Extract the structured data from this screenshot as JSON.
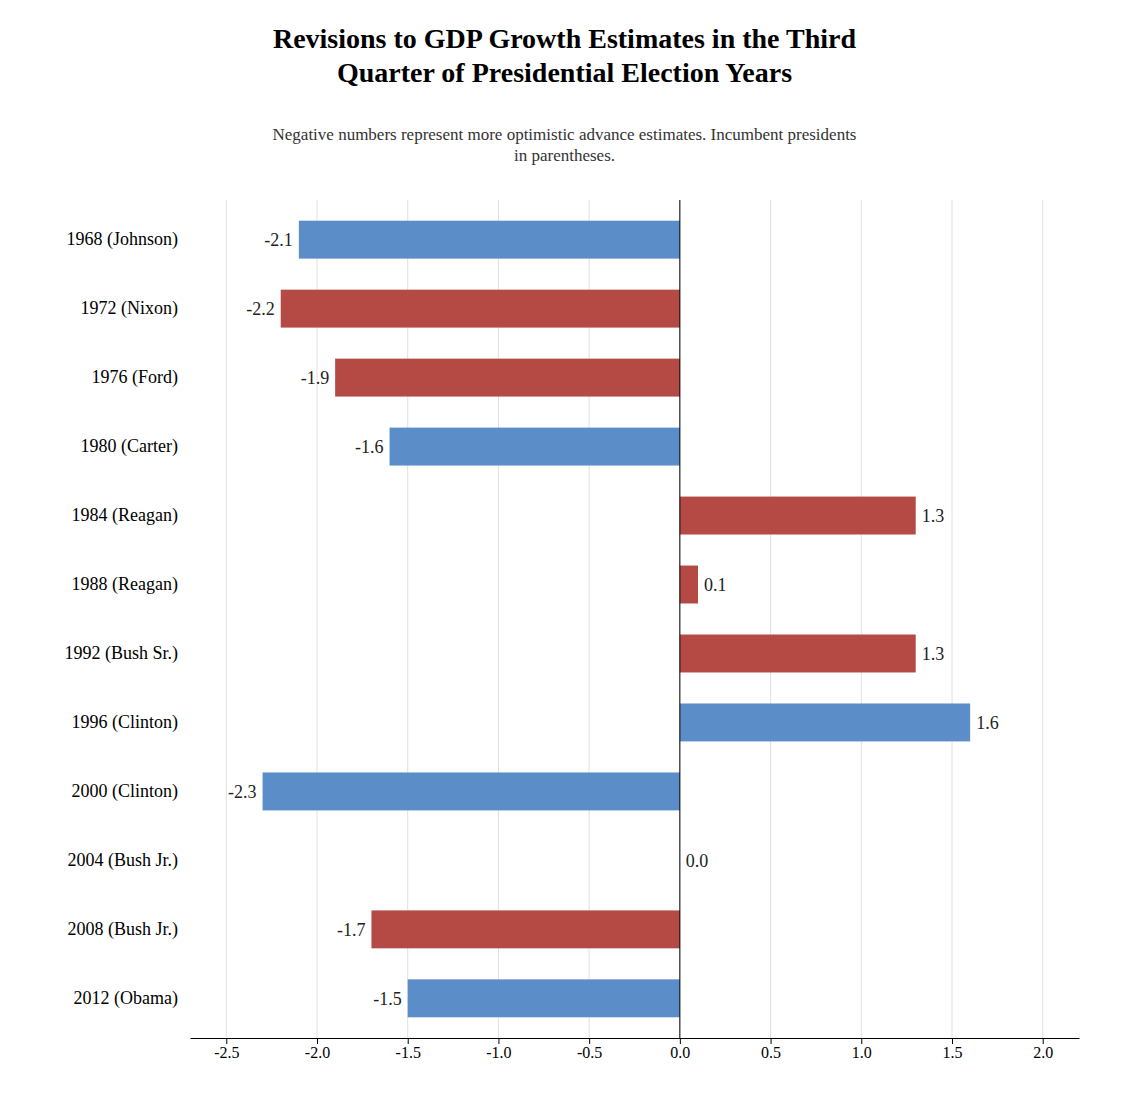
{
  "chart_data": {
    "type": "bar",
    "orientation": "horizontal",
    "title": "Revisions to GDP Growth Estimates in the Third\nQuarter of Presidential Election Years",
    "subtitle": "Negative numbers represent more optimistic advance estimates. Incumbent presidents\nin parentheses.",
    "categories": [
      "1968 (Johnson)",
      "1972 (Nixon)",
      "1976 (Ford)",
      "1980 (Carter)",
      "1984 (Reagan)",
      "1988 (Reagan)",
      "1992 (Bush Sr.)",
      "1996 (Clinton)",
      "2000 (Clinton)",
      "2004 (Bush Jr.)",
      "2008 (Bush Jr.)",
      "2012 (Obama)"
    ],
    "values": [
      -2.1,
      -2.2,
      -1.9,
      -1.6,
      1.3,
      0.1,
      1.3,
      1.6,
      -2.3,
      0.0,
      -1.7,
      -1.5
    ],
    "value_labels": [
      "-2.1",
      "-2.2",
      "-1.9",
      "-1.6",
      "1.3",
      "0.1",
      "1.3",
      "1.6",
      "-2.3",
      "0.0",
      "-1.7",
      "-1.5"
    ],
    "colors": [
      "#5b8dc9",
      "#b54a44",
      "#b54a44",
      "#5b8dc9",
      "#b54a44",
      "#b54a44",
      "#b54a44",
      "#5b8dc9",
      "#5b8dc9",
      "#b54a44",
      "#b54a44",
      "#5b8dc9"
    ],
    "xlim": [
      -2.7,
      2.2
    ],
    "xticks": [
      -2.5,
      {
        "value": -2.0,
        "label": "-2.0"
      },
      -1.5,
      {
        "value": -1.0,
        "label": "-1.0"
      },
      -0.5,
      {
        "value": 0.0,
        "label": "0.0"
      },
      0.5,
      {
        "value": 1.0,
        "label": "1.0"
      },
      1.5,
      {
        "value": 2.0,
        "label": "2.0"
      }
    ],
    "grid": true,
    "data_labels": true
  }
}
